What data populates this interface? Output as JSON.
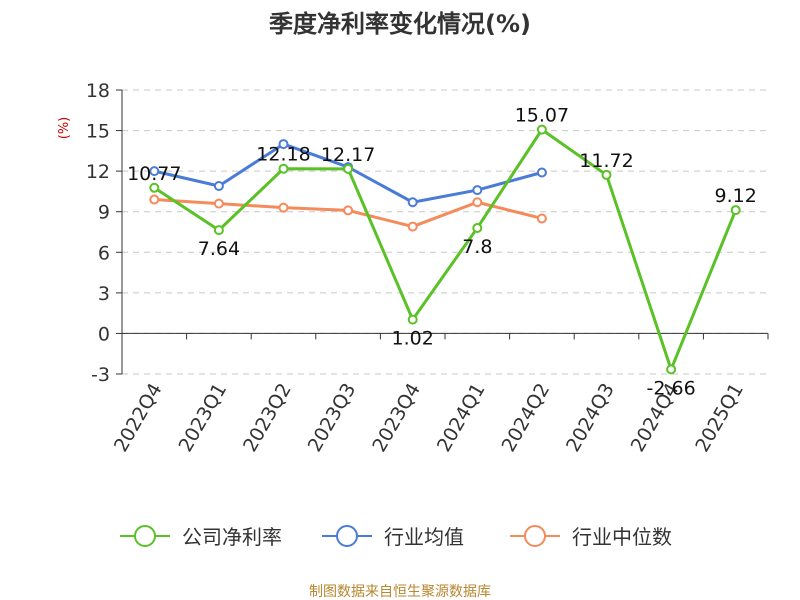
{
  "chart_data": {
    "type": "line",
    "title": "季度净利率变化情况(%)",
    "ylabel": "(%)",
    "ylim": [
      -3,
      18
    ],
    "yticks": [
      18,
      15,
      12,
      9,
      6,
      3,
      0,
      -3
    ],
    "categories": [
      "2022Q4",
      "2023Q1",
      "2023Q2",
      "2023Q3",
      "2023Q4",
      "2024Q1",
      "2024Q2",
      "2024Q3",
      "2024Q4",
      "2025Q1"
    ],
    "grid": true,
    "legend_position": "bottom",
    "series": [
      {
        "name": "公司净利率",
        "color": "#5ac126",
        "values": [
          10.77,
          7.64,
          12.18,
          12.17,
          1.02,
          7.8,
          15.07,
          11.72,
          -2.66,
          9.12
        ],
        "labels": [
          "10.77",
          "7.64",
          "12.18",
          "12.17",
          "1.02",
          "7.8",
          "15.07",
          "11.72",
          "-2.66",
          "9.12"
        ]
      },
      {
        "name": "行业均值",
        "color": "#4a7bd8",
        "values": [
          12.0,
          10.9,
          14.0,
          12.3,
          9.7,
          10.6,
          11.9,
          null,
          null,
          null
        ]
      },
      {
        "name": "行业中位数",
        "color": "#f58a5a",
        "values": [
          9.9,
          9.6,
          9.3,
          9.1,
          7.9,
          9.7,
          8.5,
          null,
          null,
          null
        ]
      }
    ]
  },
  "source": "制图数据来自恒生聚源数据库"
}
